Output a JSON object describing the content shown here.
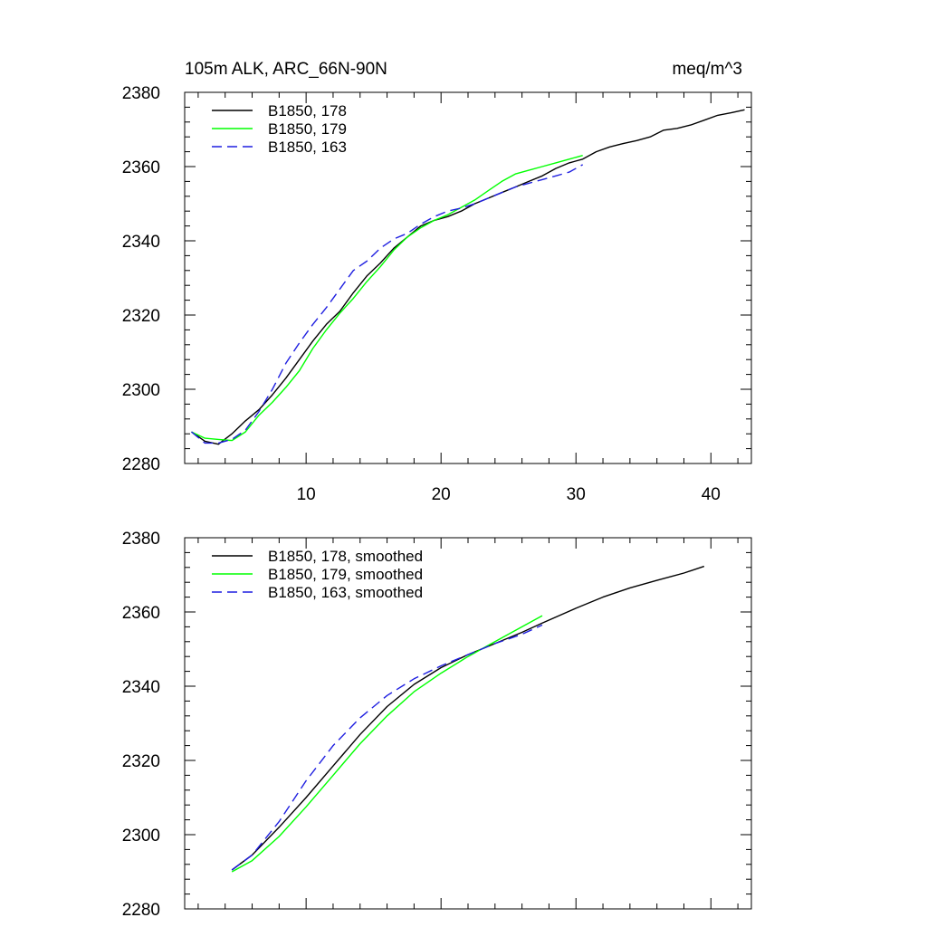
{
  "chart_data": [
    {
      "type": "line",
      "title": "105m ALK, ARC_66N-90N",
      "units": "meq/m^3",
      "xlim": [
        1,
        43
      ],
      "ylim": [
        2280,
        2380
      ],
      "xticks": [
        10,
        20,
        30,
        40
      ],
      "yticks": [
        2280,
        2300,
        2320,
        2340,
        2360,
        2380
      ],
      "grid": false,
      "legend_position": "top-left",
      "series": [
        {
          "name": "B1850, 178",
          "color": "#000000",
          "dash": "solid",
          "x": [
            1.5,
            2.5,
            3.5,
            4.5,
            5.5,
            6.5,
            7.5,
            8.5,
            9.5,
            10.5,
            11.5,
            12.5,
            13.5,
            14.5,
            15.5,
            16.5,
            17.5,
            18.5,
            19.5,
            20.5,
            21.5,
            22.5,
            23.5,
            24.5,
            25.5,
            26.5,
            27.5,
            28.5,
            29.5,
            30.5,
            31.5,
            32.5,
            33.5,
            34.5,
            35.5,
            36.5,
            37.5,
            38.5,
            39.5,
            40.5,
            41.5,
            42.5
          ],
          "y": [
            2288.5,
            2286,
            2285.2,
            2288,
            2291.5,
            2294.5,
            2298.5,
            2303,
            2308,
            2313,
            2317.5,
            2321,
            2326,
            2330.5,
            2334,
            2338,
            2341,
            2344,
            2345.5,
            2346.5,
            2348,
            2350,
            2351.5,
            2353,
            2354.5,
            2356,
            2357.5,
            2359.5,
            2361,
            2362,
            2364,
            2365.3,
            2366.2,
            2367,
            2368,
            2369.8,
            2370.3,
            2371.2,
            2372.5,
            2373.8,
            2374.5,
            2375.3
          ]
        },
        {
          "name": "B1850, 179",
          "color": "#00ff00",
          "dash": "solid",
          "x": [
            1.5,
            2.5,
            3.5,
            4.5,
            5.5,
            6.5,
            7.5,
            8.5,
            9.5,
            10.5,
            11.5,
            12.5,
            13.5,
            14.5,
            15.5,
            16.5,
            17.5,
            18.5,
            19.5,
            20.5,
            21.5,
            22.5,
            23.5,
            24.5,
            25.5,
            26.5,
            27.5,
            28.5,
            29.5,
            30.5
          ],
          "y": [
            2288.5,
            2286.8,
            2286.5,
            2286.2,
            2288.5,
            2293,
            2296.5,
            2300.5,
            2305,
            2311,
            2316,
            2320.5,
            2324.5,
            2329,
            2333,
            2337.5,
            2341,
            2343.5,
            2345.5,
            2347,
            2349,
            2351,
            2353.5,
            2356,
            2358,
            2359,
            2360,
            2361,
            2362,
            2363
          ]
        },
        {
          "name": "B1850, 163",
          "color": "#1f1fe0",
          "dash": "dashed",
          "x": [
            1.5,
            2.5,
            3.5,
            4.5,
            5.5,
            6.5,
            7.5,
            8.5,
            9.5,
            10.5,
            11.5,
            12.5,
            13.5,
            14.5,
            15.5,
            16.5,
            17.5,
            18.5,
            19.5,
            20.5,
            21.5,
            22.5,
            23.5,
            24.5,
            25.5,
            26.5,
            27.5,
            28.5,
            29.5,
            30.5
          ],
          "y": [
            2288.5,
            2285.5,
            2285.5,
            2286.5,
            2289,
            2294,
            2300,
            2307,
            2312.5,
            2317.5,
            2322,
            2327,
            2332,
            2334.5,
            2338,
            2340.5,
            2342,
            2344.5,
            2346.5,
            2348,
            2348.8,
            2350,
            2351.5,
            2353,
            2354.5,
            2355.5,
            2356.5,
            2357.5,
            2358.5,
            2360.5
          ]
        }
      ]
    },
    {
      "type": "line",
      "title": "",
      "units": "",
      "xlim": [
        1,
        43
      ],
      "ylim": [
        2280,
        2380
      ],
      "xticks": [
        10,
        20,
        30,
        40
      ],
      "yticks": [
        2280,
        2300,
        2320,
        2340,
        2360,
        2380
      ],
      "grid": false,
      "legend_position": "top-left",
      "series": [
        {
          "name": "B1850, 178, smoothed",
          "color": "#000000",
          "dash": "solid",
          "x": [
            4.5,
            6,
            8,
            10,
            12,
            14,
            16,
            18,
            20,
            22,
            24,
            26,
            27.5,
            30,
            32,
            34,
            36,
            38,
            39.5
          ],
          "y": [
            2290.5,
            2294.5,
            2302,
            2310,
            2318.5,
            2327,
            2334.5,
            2340.5,
            2345,
            2348.5,
            2351.5,
            2354.5,
            2357,
            2361,
            2364,
            2366.5,
            2368.5,
            2370.5,
            2372.3
          ]
        },
        {
          "name": "B1850, 179, smoothed",
          "color": "#00ff00",
          "dash": "solid",
          "x": [
            4.5,
            6,
            8,
            10,
            12,
            14,
            16,
            18,
            20,
            22,
            24,
            26,
            27.5
          ],
          "y": [
            2290,
            2293,
            2299.5,
            2307.5,
            2316,
            2324.5,
            2332,
            2338.5,
            2343.5,
            2348,
            2352,
            2356,
            2359
          ]
        },
        {
          "name": "B1850, 163, smoothed",
          "color": "#1f1fe0",
          "dash": "dashed",
          "x": [
            4.5,
            6,
            8,
            10,
            12,
            14,
            16,
            18,
            20,
            22,
            24,
            26,
            27.5
          ],
          "y": [
            2290.5,
            2294.5,
            2303.5,
            2314.5,
            2324,
            2331.5,
            2337.5,
            2342,
            2345.5,
            2348.5,
            2351.5,
            2354,
            2356.5
          ]
        }
      ]
    }
  ]
}
